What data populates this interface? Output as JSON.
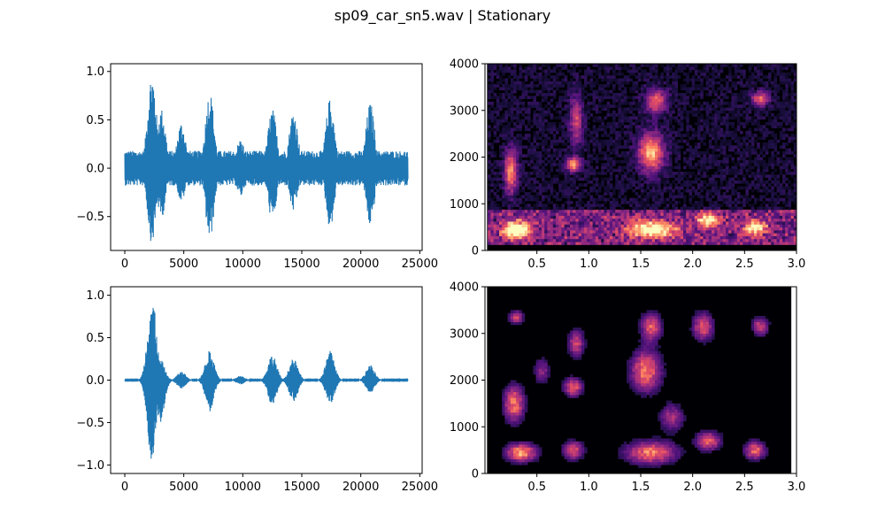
{
  "figure": {
    "title": "sp09_car_sn5.wav | Stationary"
  },
  "colors": {
    "waveform": "#1f77b4",
    "spectrogram_colormap": "magma"
  },
  "chart_data": [
    {
      "id": "noisy-waveform",
      "type": "line",
      "title": "",
      "xlabel": "",
      "ylabel": "",
      "xlim": [
        -1200,
        25200
      ],
      "ylim": [
        -0.85,
        1.08
      ],
      "xticks": [
        0,
        5000,
        10000,
        15000,
        20000,
        25000
      ],
      "xtick_labels": [
        "0",
        "5000",
        "10000",
        "15000",
        "20000",
        "25000"
      ],
      "yticks": [
        -0.5,
        0.0,
        0.5,
        1.0
      ],
      "ytick_labels": [
        "−0.5",
        "0.0",
        "0.5",
        "1.0"
      ],
      "samples": 24000,
      "noise_floor": 0.18,
      "envelope": [
        {
          "x": 2300,
          "upper": 1.0,
          "lower": -0.78
        },
        {
          "x": 3100,
          "upper": 0.62,
          "lower": -0.52
        },
        {
          "x": 4800,
          "upper": 0.48,
          "lower": -0.35
        },
        {
          "x": 7200,
          "upper": 0.8,
          "lower": -0.75
        },
        {
          "x": 9800,
          "upper": 0.3,
          "lower": -0.3
        },
        {
          "x": 12500,
          "upper": 0.62,
          "lower": -0.55
        },
        {
          "x": 14300,
          "upper": 0.6,
          "lower": -0.45
        },
        {
          "x": 17400,
          "upper": 0.72,
          "lower": -0.62
        },
        {
          "x": 20800,
          "upper": 0.68,
          "lower": -0.6
        }
      ]
    },
    {
      "id": "noisy-spectrogram",
      "type": "heatmap",
      "title": "",
      "xlabel": "",
      "ylabel": "",
      "xlim": [
        0.0,
        3.0
      ],
      "ylim": [
        0,
        4000
      ],
      "xticks": [
        0.5,
        1.0,
        1.5,
        2.0,
        2.5,
        3.0
      ],
      "xtick_labels": [
        "0.5",
        "1.0",
        "1.5",
        "2.0",
        "2.5",
        "3.0"
      ],
      "yticks": [
        0,
        1000,
        2000,
        3000,
        4000
      ],
      "ytick_labels": [
        "0",
        "1000",
        "2000",
        "3000",
        "4000"
      ],
      "stationary_noise_band": [
        150,
        850
      ],
      "blobs": [
        {
          "t": 0.25,
          "f": 1700,
          "dt": 0.06,
          "df": 450,
          "a": 0.7
        },
        {
          "t": 0.3,
          "f": 450,
          "dt": 0.12,
          "df": 180,
          "a": 0.95
        },
        {
          "t": 0.85,
          "f": 1850,
          "dt": 0.07,
          "df": 150,
          "a": 0.75
        },
        {
          "t": 0.88,
          "f": 2800,
          "dt": 0.06,
          "df": 500,
          "a": 0.5
        },
        {
          "t": 1.6,
          "f": 2100,
          "dt": 0.12,
          "df": 400,
          "a": 0.8
        },
        {
          "t": 1.65,
          "f": 3200,
          "dt": 0.1,
          "df": 250,
          "a": 0.6
        },
        {
          "t": 1.6,
          "f": 450,
          "dt": 0.22,
          "df": 180,
          "a": 0.8
        },
        {
          "t": 2.15,
          "f": 650,
          "dt": 0.1,
          "df": 150,
          "a": 0.75
        },
        {
          "t": 2.6,
          "f": 500,
          "dt": 0.1,
          "df": 150,
          "a": 0.75
        },
        {
          "t": 2.65,
          "f": 3250,
          "dt": 0.08,
          "df": 150,
          "a": 0.6
        }
      ]
    },
    {
      "id": "denoised-waveform",
      "type": "line",
      "title": "",
      "xlabel": "",
      "ylabel": "",
      "xlim": [
        -1200,
        25200
      ],
      "ylim": [
        -1.1,
        1.1
      ],
      "xticks": [
        0,
        5000,
        10000,
        15000,
        20000,
        25000
      ],
      "xtick_labels": [
        "0",
        "5000",
        "10000",
        "15000",
        "20000",
        "25000"
      ],
      "yticks": [
        -1.0,
        -0.5,
        0.0,
        0.5,
        1.0
      ],
      "ytick_labels": [
        "−1.0",
        "−0.5",
        "0.0",
        "0.5",
        "1.0"
      ],
      "samples": 24000,
      "noise_floor": 0.005,
      "envelope": [
        {
          "x": 2300,
          "upper": 1.0,
          "lower": -0.98
        },
        {
          "x": 3000,
          "upper": 0.25,
          "lower": -0.5
        },
        {
          "x": 4800,
          "upper": 0.1,
          "lower": -0.1
        },
        {
          "x": 7200,
          "upper": 0.35,
          "lower": -0.37
        },
        {
          "x": 9800,
          "upper": 0.05,
          "lower": -0.05
        },
        {
          "x": 12500,
          "upper": 0.3,
          "lower": -0.3
        },
        {
          "x": 14300,
          "upper": 0.25,
          "lower": -0.25
        },
        {
          "x": 17400,
          "upper": 0.35,
          "lower": -0.28
        },
        {
          "x": 20800,
          "upper": 0.18,
          "lower": -0.15
        }
      ]
    },
    {
      "id": "denoised-spectrogram",
      "type": "heatmap",
      "title": "",
      "xlabel": "",
      "ylabel": "",
      "xlim": [
        0.0,
        3.0
      ],
      "ylim": [
        0,
        4000
      ],
      "xticks": [
        0.5,
        1.0,
        1.5,
        2.0,
        2.5,
        3.0
      ],
      "xtick_labels": [
        "0.5",
        "1.0",
        "1.5",
        "2.0",
        "2.5",
        "3.0"
      ],
      "yticks": [
        0,
        1000,
        2000,
        3000,
        4000
      ],
      "ytick_labels": [
        "0",
        "1000",
        "2000",
        "3000",
        "4000"
      ],
      "blobs": [
        {
          "t": 0.28,
          "f": 1500,
          "dt": 0.1,
          "df": 400,
          "a": 0.85
        },
        {
          "t": 0.3,
          "f": 3350,
          "dt": 0.07,
          "df": 150,
          "a": 0.65
        },
        {
          "t": 0.35,
          "f": 450,
          "dt": 0.15,
          "df": 200,
          "a": 0.95
        },
        {
          "t": 0.55,
          "f": 2200,
          "dt": 0.08,
          "df": 300,
          "a": 0.45
        },
        {
          "t": 0.85,
          "f": 1850,
          "dt": 0.09,
          "df": 200,
          "a": 0.8
        },
        {
          "t": 0.88,
          "f": 2800,
          "dt": 0.08,
          "df": 300,
          "a": 0.65
        },
        {
          "t": 0.85,
          "f": 500,
          "dt": 0.1,
          "df": 200,
          "a": 0.75
        },
        {
          "t": 1.55,
          "f": 2200,
          "dt": 0.15,
          "df": 450,
          "a": 0.85
        },
        {
          "t": 1.6,
          "f": 3150,
          "dt": 0.1,
          "df": 300,
          "a": 0.75
        },
        {
          "t": 1.6,
          "f": 450,
          "dt": 0.25,
          "df": 250,
          "a": 0.85
        },
        {
          "t": 1.8,
          "f": 1200,
          "dt": 0.12,
          "df": 300,
          "a": 0.55
        },
        {
          "t": 2.1,
          "f": 3150,
          "dt": 0.1,
          "df": 300,
          "a": 0.75
        },
        {
          "t": 2.15,
          "f": 700,
          "dt": 0.12,
          "df": 200,
          "a": 0.8
        },
        {
          "t": 2.6,
          "f": 500,
          "dt": 0.1,
          "df": 200,
          "a": 0.8
        },
        {
          "t": 2.65,
          "f": 3150,
          "dt": 0.08,
          "df": 200,
          "a": 0.65
        }
      ]
    }
  ]
}
